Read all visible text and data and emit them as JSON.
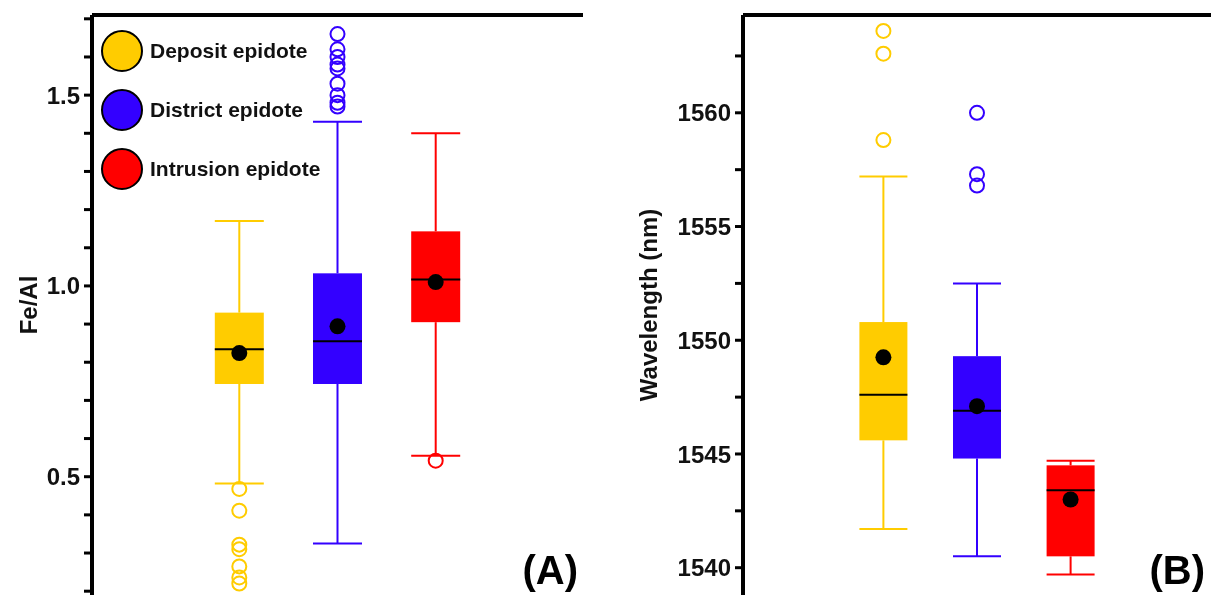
{
  "chart_data": [
    {
      "type": "box",
      "ylabel": "Fe/Al",
      "categories": [
        null,
        null,
        null,
        null,
        null
      ],
      "ylim": [
        0.19,
        1.71
      ],
      "yticks": [
        {
          "value": 0.2,
          "label": null
        },
        {
          "value": 0.3,
          "label": null
        },
        {
          "value": 0.4,
          "label": null
        },
        0.5,
        {
          "value": 0.6,
          "label": null
        },
        {
          "value": 0.7,
          "label": null
        },
        {
          "value": 0.8,
          "label": null
        },
        {
          "value": 0.9,
          "label": null
        },
        {
          "value": 1,
          "label": "1.0"
        },
        {
          "value": 1.1,
          "label": null
        },
        {
          "value": 1.2,
          "label": null
        },
        {
          "value": 1.3,
          "label": null
        },
        {
          "value": 1.4,
          "label": null
        },
        1.5,
        {
          "value": 1.6,
          "label": null
        },
        {
          "value": 1.7,
          "label": null
        }
      ],
      "legend": "top left",
      "annotations": [
        "(A)"
      ],
      "series": [
        {
          "name": "Deposit epidote",
          "color": "#ffcc00",
          "boxes": [
            null,
            {
              "low": 0.482,
              "q1": 0.743,
              "median": 0.834,
              "q3": 0.93,
              "high": 1.17,
              "mean": 0.824,
              "outliers": [
                0.468,
                0.411,
                0.322,
                0.31,
                0.265,
                0.236,
                0.22
              ]
            },
            null,
            null,
            null
          ]
        },
        {
          "name": "District epidote",
          "color": "#3300ff",
          "boxes": [
            null,
            null,
            {
              "low": 0.325,
              "q1": 0.743,
              "median": 0.855,
              "q3": 1.033,
              "high": 1.43,
              "mean": 0.894,
              "outliers": [
                1.66,
                1.62,
                1.6,
                1.58,
                1.57,
                1.53,
                1.5,
                1.48,
                1.47
              ]
            },
            null,
            null
          ]
        },
        {
          "name": "Intrusion epidote",
          "color": "#ff0000",
          "boxes": [
            null,
            null,
            null,
            {
              "low": 0.555,
              "q1": 0.905,
              "median": 1.017,
              "q3": 1.143,
              "high": 1.4,
              "mean": 1.01,
              "outliers": [
                0.542
              ]
            },
            null
          ]
        }
      ]
    },
    {
      "type": "box",
      "ylabel": "Wavelength (nm)",
      "categories": [
        null,
        null,
        null,
        null,
        null
      ],
      "ylim": [
        1538.8,
        1564.3
      ],
      "yticks": [
        1540,
        {
          "value": 1542.5,
          "label": null
        },
        1545,
        {
          "value": 1547.5,
          "label": null
        },
        1550,
        {
          "value": 1552.5,
          "label": null
        },
        1555,
        {
          "value": 1557.5,
          "label": null
        },
        1560,
        {
          "value": 1562.5,
          "label": null
        }
      ],
      "annotations": [
        "(B)"
      ],
      "series": [
        {
          "color": "#ffcc00",
          "boxes": [
            null,
            {
              "low": 1541.7,
              "q1": 1545.6,
              "median": 1547.6,
              "q3": 1550.8,
              "high": 1557.2,
              "mean": 1549.25,
              "outliers": [
                1563.6,
                1562.6,
                1558.8
              ]
            },
            null,
            null,
            null
          ]
        },
        {
          "color": "#3300ff",
          "boxes": [
            null,
            null,
            {
              "low": 1540.5,
              "q1": 1544.8,
              "median": 1546.9,
              "q3": 1549.3,
              "high": 1552.5,
              "mean": 1547.1,
              "outliers": [
                1560,
                1557.3,
                1556.8
              ]
            },
            null,
            null
          ]
        },
        {
          "color": "#ff0000",
          "boxes": [
            null,
            null,
            null,
            {
              "low": 1539.7,
              "q1": 1540.5,
              "median": 1543.4,
              "q3": 1544.5,
              "high": 1544.7,
              "mean": 1543.0
            },
            null
          ]
        }
      ]
    }
  ]
}
